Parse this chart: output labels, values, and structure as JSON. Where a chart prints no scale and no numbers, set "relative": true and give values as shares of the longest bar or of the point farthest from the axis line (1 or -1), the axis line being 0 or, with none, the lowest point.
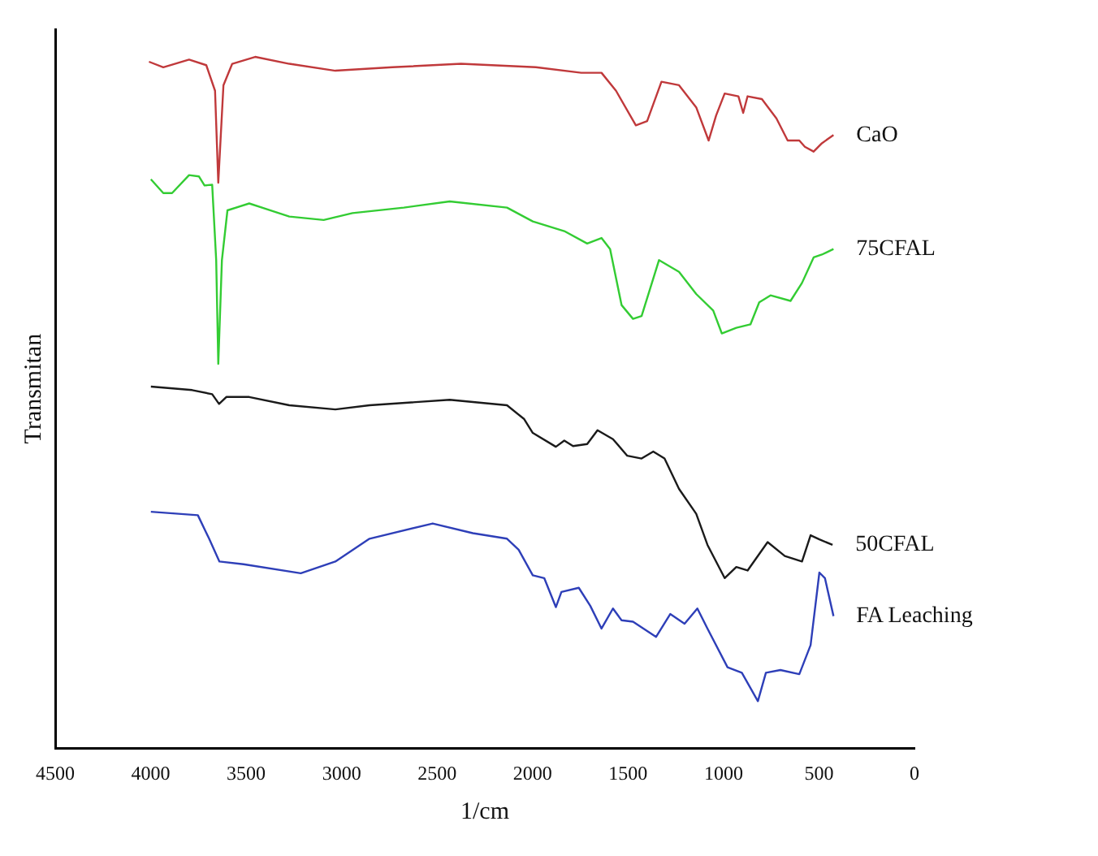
{
  "chart_data": {
    "type": "line",
    "relative": true,
    "xlabel": "1/cm",
    "ylabel": "Transmitan",
    "xlim": [
      4500,
      0
    ],
    "xticks": [
      4500,
      4000,
      3500,
      3000,
      2500,
      2000,
      1500,
      1000,
      500,
      0
    ],
    "grid": false,
    "legend": false,
    "marker": "none",
    "line_style": "solid",
    "series": [
      {
        "name": "CaO",
        "color": "#c0393b",
        "x": [
          4009,
          3934,
          3799,
          3709,
          3663,
          3646,
          3619,
          3573,
          3453,
          3274,
          3033,
          2734,
          2375,
          1983,
          1745,
          1639,
          1563,
          1459,
          1400,
          1325,
          1233,
          1143,
          1078,
          1039,
          994,
          922,
          897,
          874,
          799,
          723,
          664,
          603,
          574,
          528,
          485,
          424
        ],
        "values": [
          0.993,
          0.985,
          0.996,
          0.988,
          0.951,
          0.818,
          0.959,
          0.99,
          1.0,
          0.99,
          0.98,
          0.985,
          0.99,
          0.985,
          0.977,
          0.977,
          0.951,
          0.901,
          0.907,
          0.964,
          0.959,
          0.927,
          0.879,
          0.915,
          0.947,
          0.943,
          0.919,
          0.943,
          0.939,
          0.911,
          0.879,
          0.879,
          0.87,
          0.863,
          0.875,
          0.887
        ]
      },
      {
        "name": "75CFAL",
        "color": "#33cc33",
        "x": [
          3999,
          3934,
          3888,
          3799,
          3747,
          3718,
          3678,
          3657,
          3646,
          3627,
          3598,
          3484,
          3274,
          3094,
          2943,
          2674,
          2434,
          2134,
          1999,
          1834,
          1714,
          1639,
          1594,
          1534,
          1474,
          1429,
          1338,
          1233,
          1143,
          1054,
          1009,
          933,
          859,
          813,
          754,
          649,
          589,
          528,
          485,
          424
        ],
        "values": [
          0.823,
          0.803,
          0.803,
          0.829,
          0.827,
          0.814,
          0.815,
          0.706,
          0.556,
          0.706,
          0.778,
          0.788,
          0.769,
          0.764,
          0.774,
          0.782,
          0.791,
          0.782,
          0.762,
          0.748,
          0.73,
          0.738,
          0.722,
          0.641,
          0.621,
          0.625,
          0.706,
          0.689,
          0.657,
          0.633,
          0.6,
          0.608,
          0.613,
          0.645,
          0.655,
          0.647,
          0.673,
          0.71,
          0.714,
          0.722
        ]
      },
      {
        "name": "50CFAL",
        "color": "#1a1a1a",
        "x": [
          3999,
          3783,
          3678,
          3642,
          3604,
          3484,
          3274,
          3033,
          2854,
          2434,
          2134,
          2044,
          1999,
          1878,
          1834,
          1788,
          1714,
          1660,
          1579,
          1504,
          1429,
          1368,
          1309,
          1233,
          1143,
          1084,
          994,
          933,
          874,
          769,
          679,
          589,
          544,
          498,
          429
        ],
        "values": [
          0.523,
          0.518,
          0.512,
          0.498,
          0.508,
          0.508,
          0.496,
          0.49,
          0.496,
          0.504,
          0.496,
          0.476,
          0.456,
          0.436,
          0.445,
          0.437,
          0.44,
          0.46,
          0.447,
          0.423,
          0.419,
          0.429,
          0.419,
          0.375,
          0.339,
          0.294,
          0.246,
          0.262,
          0.257,
          0.298,
          0.278,
          0.27,
          0.308,
          0.302,
          0.294
        ]
      },
      {
        "name": "FA Leaching",
        "color": "#2e3fb8",
        "x": [
          3999,
          3753,
          3694,
          3640,
          3514,
          3214,
          3033,
          2854,
          2523,
          2313,
          2134,
          2073,
          1999,
          1939,
          1878,
          1849,
          1758,
          1698,
          1639,
          1579,
          1534,
          1474,
          1353,
          1279,
          1204,
          1137,
          1084,
          979,
          904,
          820,
          778,
          702,
          603,
          544,
          498,
          469,
          424
        ],
        "values": [
          0.342,
          0.337,
          0.303,
          0.27,
          0.266,
          0.253,
          0.27,
          0.303,
          0.325,
          0.311,
          0.303,
          0.287,
          0.25,
          0.246,
          0.204,
          0.226,
          0.232,
          0.206,
          0.173,
          0.202,
          0.185,
          0.183,
          0.161,
          0.194,
          0.18,
          0.202,
          0.173,
          0.117,
          0.109,
          0.068,
          0.109,
          0.113,
          0.107,
          0.149,
          0.254,
          0.246,
          0.191
        ]
      }
    ]
  }
}
